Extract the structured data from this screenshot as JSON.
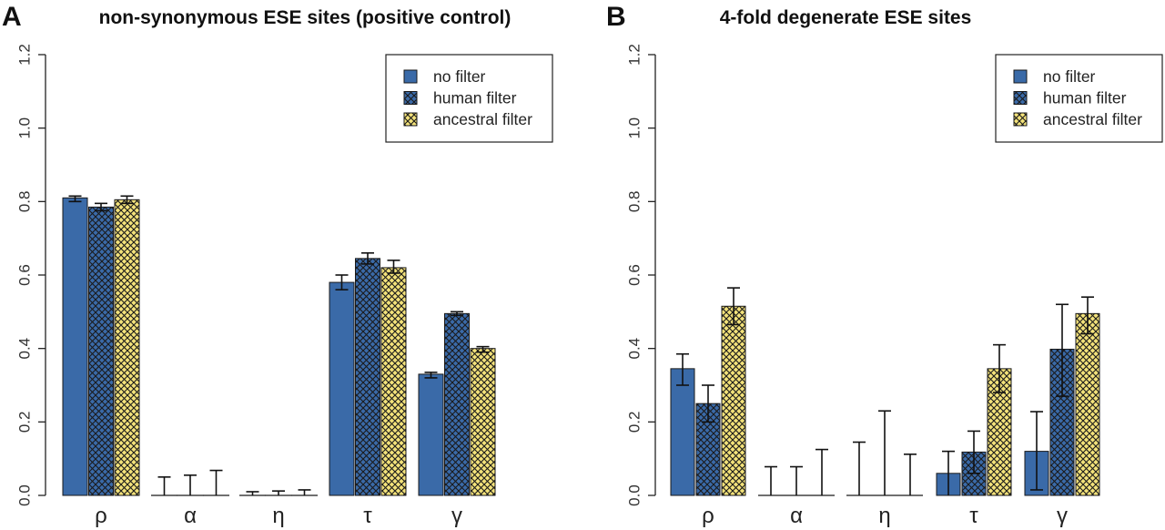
{
  "colors": {
    "no_filter": "#3a6aa8",
    "human_filter_bg": "#3a6aa8",
    "ancestral_filter_bg": "#f3e27a",
    "hatch": "#1a1a1a",
    "axis": "#222222"
  },
  "chart_data": [
    {
      "type": "bar",
      "panel_letter": "A",
      "title": "non-synonymous ESE sites (positive control)",
      "xlabel": "",
      "ylabel": "",
      "ylim": [
        0,
        1.2
      ],
      "yticks": [
        "0.0",
        "0.2",
        "0.4",
        "0.6",
        "0.8",
        "1.0",
        "1.2"
      ],
      "categories": [
        "ρ",
        "α",
        "η",
        "τ",
        "γ"
      ],
      "legend": {
        "position": "top-right",
        "entries": [
          "no filter",
          "human filter",
          "ancestral filter"
        ]
      },
      "series": [
        {
          "name": "no filter",
          "values": [
            0.81,
            0.0,
            0.0,
            0.58,
            0.33
          ],
          "err_low": [
            0.8,
            0.0,
            0.0,
            0.56,
            0.32
          ],
          "err_high": [
            0.815,
            0.05,
            0.01,
            0.6,
            0.335
          ]
        },
        {
          "name": "human filter",
          "values": [
            0.785,
            0.0,
            0.0,
            0.645,
            0.495
          ],
          "err_low": [
            0.775,
            0.0,
            0.0,
            0.63,
            0.49
          ],
          "err_high": [
            0.795,
            0.055,
            0.012,
            0.66,
            0.5
          ]
        },
        {
          "name": "ancestral filter",
          "values": [
            0.805,
            0.0,
            0.0,
            0.62,
            0.4
          ],
          "err_low": [
            0.795,
            0.0,
            0.0,
            0.605,
            0.39
          ],
          "err_high": [
            0.815,
            0.068,
            0.015,
            0.64,
            0.405
          ]
        }
      ]
    },
    {
      "type": "bar",
      "panel_letter": "B",
      "title": "4-fold degenerate ESE sites",
      "xlabel": "",
      "ylabel": "",
      "ylim": [
        0,
        1.2
      ],
      "yticks": [
        "0.0",
        "0.2",
        "0.4",
        "0.6",
        "0.8",
        "1.0",
        "1.2"
      ],
      "categories": [
        "ρ",
        "α",
        "η",
        "τ",
        "γ"
      ],
      "legend": {
        "position": "top-right",
        "entries": [
          "no filter",
          "human filter",
          "ancestral filter"
        ]
      },
      "series": [
        {
          "name": "no filter",
          "values": [
            0.345,
            0.0,
            0.0,
            0.06,
            0.12
          ],
          "err_low": [
            0.3,
            0.0,
            0.0,
            0.0,
            0.015
          ],
          "err_high": [
            0.385,
            0.078,
            0.145,
            0.12,
            0.228
          ]
        },
        {
          "name": "human filter",
          "values": [
            0.25,
            0.0,
            0.0,
            0.118,
            0.398
          ],
          "err_low": [
            0.2,
            0.0,
            0.0,
            0.06,
            0.27
          ],
          "err_high": [
            0.3,
            0.078,
            0.23,
            0.175,
            0.52
          ]
        },
        {
          "name": "ancestral filter",
          "values": [
            0.515,
            0.0,
            0.0,
            0.345,
            0.495
          ],
          "err_low": [
            0.465,
            0.0,
            0.0,
            0.28,
            0.44
          ],
          "err_high": [
            0.565,
            0.125,
            0.112,
            0.41,
            0.54
          ]
        }
      ]
    }
  ]
}
